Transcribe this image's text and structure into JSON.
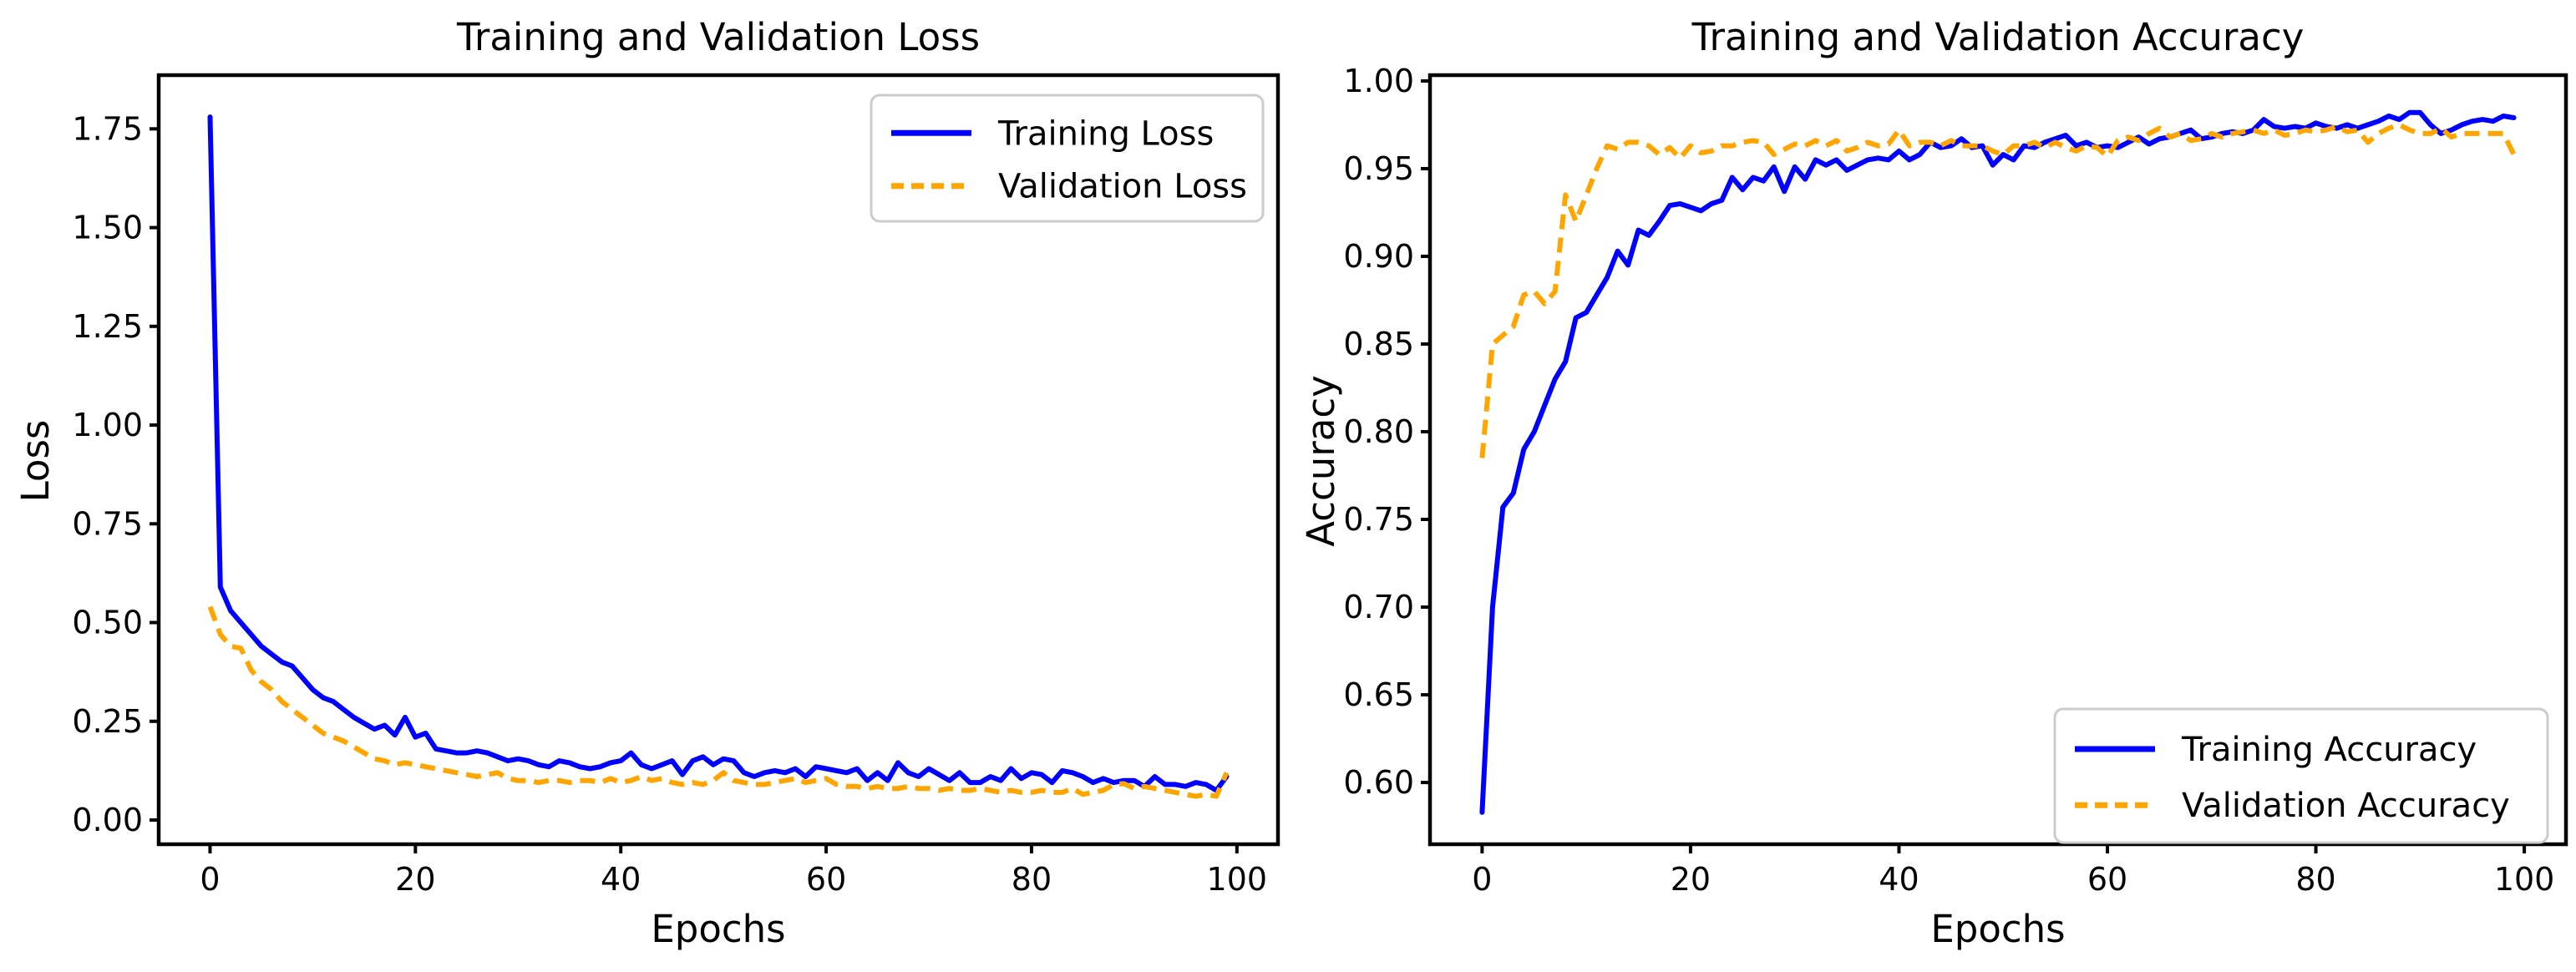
{
  "figure": {
    "background": "#ffffff",
    "series_colors": {
      "training": "#0000ff",
      "validation": "#ffa500"
    }
  },
  "chart_data": [
    {
      "type": "line",
      "title": "Training and Validation Loss",
      "xlabel": "Epochs",
      "ylabel": "Loss",
      "grid": false,
      "x_start": 0,
      "x_step": 1,
      "xlim": [
        -5,
        104
      ],
      "ylim": [
        -0.0613,
        1.886
      ],
      "xticks": [
        0,
        20,
        40,
        60,
        80,
        100
      ],
      "yticks": [
        0.0,
        0.25,
        0.5,
        0.75,
        1.0,
        1.25,
        1.5,
        1.75
      ],
      "xtick_format_decimals": 0,
      "ytick_format_decimals": 2,
      "legend": {
        "position": "upper-right"
      },
      "series": [
        {
          "name": "Training Loss",
          "color": "#0000ff",
          "line_style": "solid",
          "values": [
            1.78,
            0.59,
            0.53,
            0.5,
            0.47,
            0.44,
            0.42,
            0.4,
            0.39,
            0.36,
            0.33,
            0.31,
            0.3,
            0.28,
            0.26,
            0.245,
            0.23,
            0.24,
            0.215,
            0.26,
            0.21,
            0.22,
            0.18,
            0.175,
            0.17,
            0.17,
            0.175,
            0.17,
            0.16,
            0.15,
            0.155,
            0.15,
            0.14,
            0.135,
            0.15,
            0.145,
            0.135,
            0.13,
            0.135,
            0.145,
            0.15,
            0.17,
            0.14,
            0.13,
            0.14,
            0.15,
            0.115,
            0.15,
            0.16,
            0.14,
            0.155,
            0.15,
            0.12,
            0.11,
            0.12,
            0.125,
            0.12,
            0.13,
            0.11,
            0.135,
            0.13,
            0.125,
            0.12,
            0.13,
            0.1,
            0.12,
            0.1,
            0.145,
            0.12,
            0.11,
            0.13,
            0.115,
            0.1,
            0.12,
            0.095,
            0.095,
            0.11,
            0.1,
            0.13,
            0.105,
            0.12,
            0.115,
            0.095,
            0.125,
            0.12,
            0.11,
            0.095,
            0.105,
            0.095,
            0.1,
            0.1,
            0.085,
            0.11,
            0.09,
            0.09,
            0.085,
            0.095,
            0.09,
            0.075,
            0.11
          ]
        },
        {
          "name": "Validation Loss",
          "color": "#ffa500",
          "line_style": "dashed",
          "values": [
            0.54,
            0.47,
            0.44,
            0.435,
            0.38,
            0.35,
            0.33,
            0.3,
            0.28,
            0.26,
            0.24,
            0.22,
            0.21,
            0.2,
            0.185,
            0.17,
            0.155,
            0.15,
            0.14,
            0.145,
            0.14,
            0.135,
            0.13,
            0.125,
            0.12,
            0.115,
            0.11,
            0.115,
            0.12,
            0.105,
            0.1,
            0.1,
            0.095,
            0.1,
            0.1,
            0.095,
            0.1,
            0.1,
            0.095,
            0.105,
            0.095,
            0.1,
            0.11,
            0.1,
            0.105,
            0.095,
            0.09,
            0.095,
            0.09,
            0.1,
            0.12,
            0.1,
            0.095,
            0.09,
            0.09,
            0.095,
            0.1,
            0.105,
            0.095,
            0.1,
            0.105,
            0.09,
            0.085,
            0.085,
            0.08,
            0.085,
            0.08,
            0.08,
            0.085,
            0.08,
            0.08,
            0.075,
            0.08,
            0.075,
            0.075,
            0.08,
            0.075,
            0.07,
            0.075,
            0.07,
            0.07,
            0.075,
            0.07,
            0.07,
            0.08,
            0.065,
            0.07,
            0.075,
            0.09,
            0.092,
            0.08,
            0.085,
            0.08,
            0.075,
            0.07,
            0.065,
            0.06,
            0.065,
            0.06,
            0.12
          ]
        }
      ]
    },
    {
      "type": "line",
      "title": "Training and Validation Accuracy",
      "xlabel": "Epochs",
      "ylabel": "Accuracy",
      "grid": false,
      "x_start": 0,
      "x_step": 1,
      "xlim": [
        -5,
        104
      ],
      "ylim": [
        0.5648,
        1.0033
      ],
      "xticks": [
        0,
        20,
        40,
        60,
        80,
        100
      ],
      "yticks": [
        0.6,
        0.65,
        0.7,
        0.75,
        0.8,
        0.85,
        0.9,
        0.95,
        1.0
      ],
      "xtick_format_decimals": 0,
      "ytick_format_decimals": 2,
      "legend": {
        "position": "lower-right"
      },
      "series": [
        {
          "name": "Training Accuracy",
          "color": "#0000ff",
          "line_style": "solid",
          "values": [
            0.583,
            0.7,
            0.757,
            0.765,
            0.79,
            0.8,
            0.815,
            0.83,
            0.84,
            0.865,
            0.868,
            0.878,
            0.888,
            0.903,
            0.895,
            0.915,
            0.912,
            0.92,
            0.929,
            0.93,
            0.928,
            0.926,
            0.93,
            0.932,
            0.945,
            0.938,
            0.945,
            0.943,
            0.951,
            0.937,
            0.951,
            0.944,
            0.955,
            0.952,
            0.955,
            0.949,
            0.952,
            0.955,
            0.956,
            0.955,
            0.96,
            0.955,
            0.958,
            0.965,
            0.962,
            0.963,
            0.967,
            0.962,
            0.963,
            0.952,
            0.958,
            0.955,
            0.963,
            0.962,
            0.965,
            0.967,
            0.969,
            0.963,
            0.965,
            0.962,
            0.963,
            0.962,
            0.965,
            0.968,
            0.964,
            0.967,
            0.968,
            0.97,
            0.972,
            0.967,
            0.968,
            0.97,
            0.971,
            0.97,
            0.972,
            0.978,
            0.974,
            0.973,
            0.974,
            0.973,
            0.976,
            0.974,
            0.973,
            0.975,
            0.973,
            0.975,
            0.977,
            0.98,
            0.978,
            0.982,
            0.982,
            0.975,
            0.97,
            0.972,
            0.975,
            0.977,
            0.978,
            0.977,
            0.98,
            0.979
          ]
        },
        {
          "name": "Validation Accuracy",
          "color": "#ffa500",
          "line_style": "dashed",
          "values": [
            0.785,
            0.85,
            0.855,
            0.86,
            0.878,
            0.88,
            0.873,
            0.88,
            0.935,
            0.92,
            0.935,
            0.95,
            0.963,
            0.961,
            0.965,
            0.965,
            0.963,
            0.958,
            0.962,
            0.956,
            0.963,
            0.959,
            0.96,
            0.963,
            0.963,
            0.965,
            0.966,
            0.965,
            0.958,
            0.961,
            0.964,
            0.963,
            0.966,
            0.963,
            0.966,
            0.96,
            0.962,
            0.965,
            0.963,
            0.964,
            0.972,
            0.963,
            0.965,
            0.965,
            0.963,
            0.966,
            0.963,
            0.963,
            0.963,
            0.96,
            0.958,
            0.963,
            0.963,
            0.965,
            0.962,
            0.965,
            0.962,
            0.96,
            0.963,
            0.962,
            0.957,
            0.966,
            0.968,
            0.966,
            0.97,
            0.973,
            0.968,
            0.97,
            0.966,
            0.967,
            0.97,
            0.968,
            0.97,
            0.971,
            0.972,
            0.97,
            0.972,
            0.969,
            0.97,
            0.972,
            0.971,
            0.972,
            0.974,
            0.971,
            0.972,
            0.965,
            0.97,
            0.973,
            0.975,
            0.972,
            0.97,
            0.97,
            0.973,
            0.968,
            0.97,
            0.97,
            0.97,
            0.97,
            0.97,
            0.958
          ]
        }
      ]
    }
  ]
}
